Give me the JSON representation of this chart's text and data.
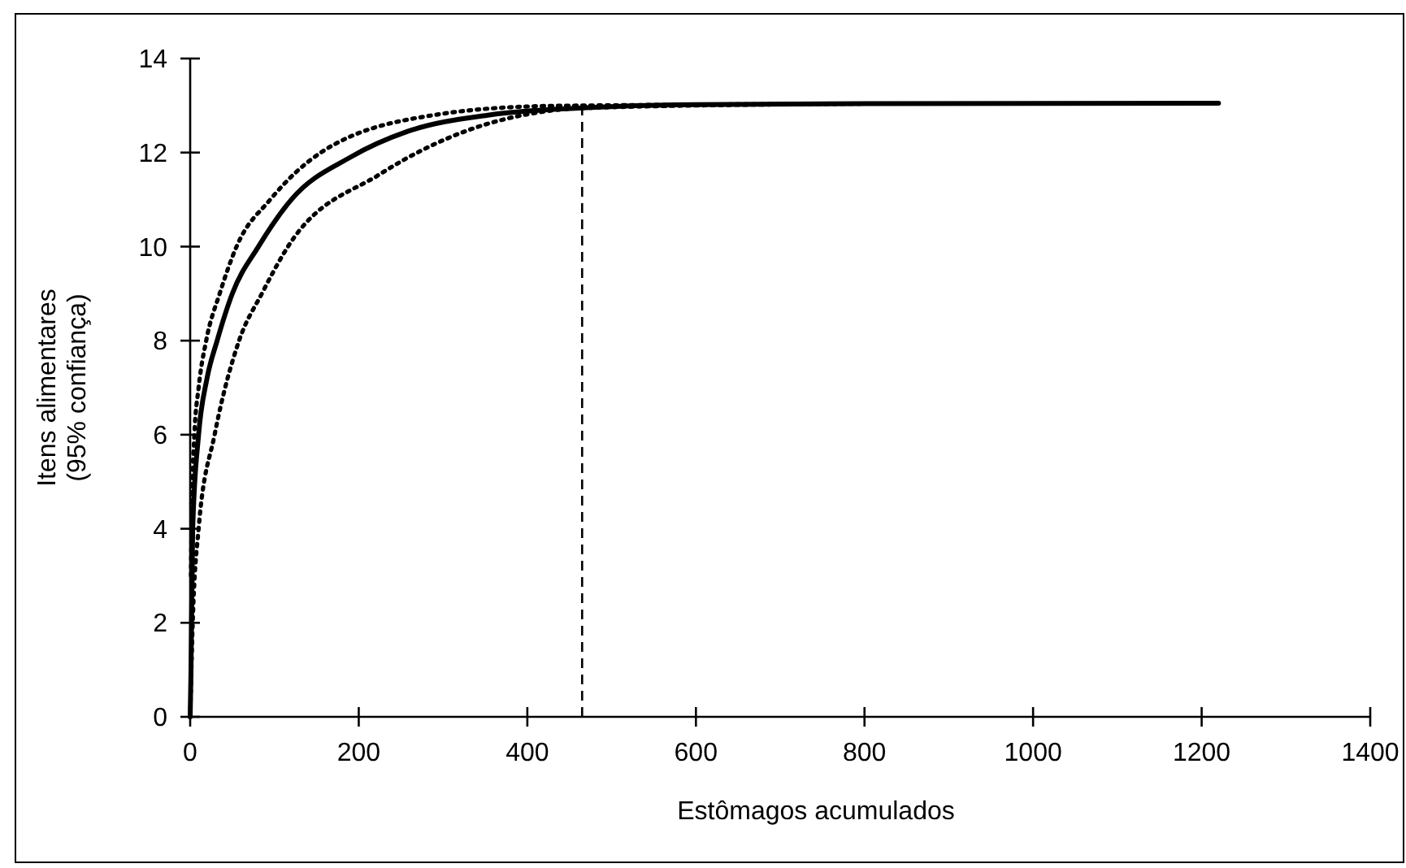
{
  "chart_data": {
    "type": "line",
    "xlabel": "Estômagos acumulados",
    "ylabel": "Itens alimentares\n(95% confiança)",
    "xlim": [
      0,
      1400
    ],
    "xticks": [
      0,
      200,
      400,
      600,
      800,
      1000,
      1200,
      1400
    ],
    "ylim": [
      0,
      14
    ],
    "yticks": [
      0,
      2,
      4,
      6,
      8,
      10,
      12,
      14
    ],
    "grid": false,
    "ref_lines": [
      {
        "axis": "x",
        "value": 465,
        "line_style": "dashed",
        "color": "#000000"
      }
    ],
    "series": [
      {
        "color": "#000000",
        "line_style": "solid",
        "x": [
          0,
          1,
          3,
          10,
          20,
          32,
          50,
          81,
          120,
          190,
          258,
          355,
          465,
          600,
          800,
          1220
        ],
        "values": [
          0,
          1,
          4,
          6,
          7.2,
          8,
          9,
          10,
          11,
          11.9,
          12.45,
          12.8,
          12.95,
          13.02,
          13.04,
          13.05
        ]
      },
      {
        "color": "#000000",
        "line_style": "dotted",
        "x": [
          1,
          2,
          5,
          10,
          19,
          35,
          55,
          95,
          155,
          290,
          420,
          470,
          700
        ],
        "values": [
          3,
          4.5,
          6,
          7,
          8,
          9,
          10,
          11,
          12,
          12.8,
          12.99,
          13,
          13.03
        ]
      },
      {
        "color": "#000000",
        "line_style": "dotted",
        "x": [
          0,
          3,
          10,
          29,
          58,
          85,
          116,
          226,
          329,
          419,
          470,
          800
        ],
        "values": [
          0,
          2,
          4,
          6,
          8,
          9,
          10,
          11.55,
          12.47,
          12.87,
          12.95,
          13.04
        ]
      }
    ]
  }
}
